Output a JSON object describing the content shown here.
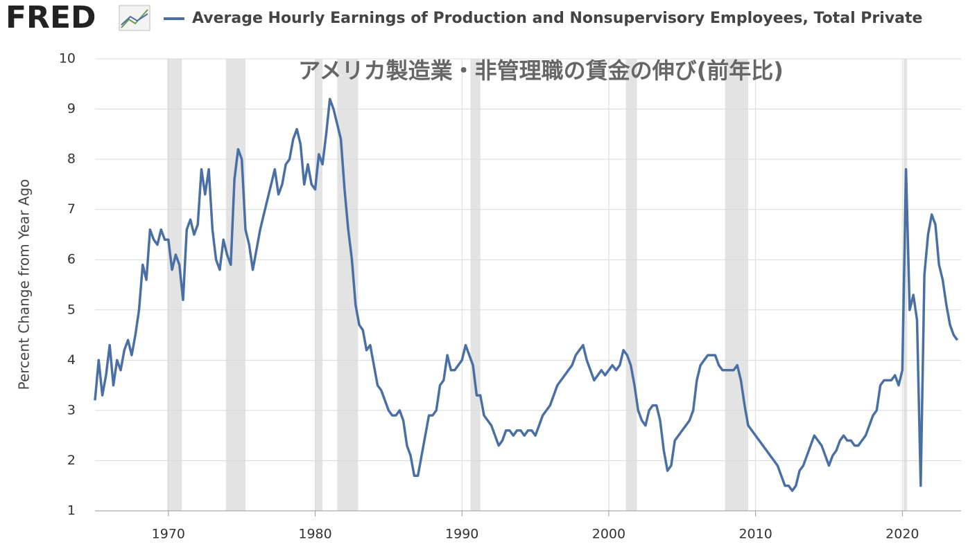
{
  "chart_data": {
    "type": "line",
    "logo": "FRED",
    "annotation": "アメリカ製造業・非管理職の賃金の伸び(前年比)",
    "ylabel": "Percent Change from Year Ago",
    "xlim": [
      1965,
      2024
    ],
    "ylim": [
      1,
      10
    ],
    "xticks": [
      1970,
      1980,
      1990,
      2000,
      2010,
      2020
    ],
    "yticks": [
      1,
      2,
      3,
      4,
      5,
      6,
      7,
      8,
      9,
      10
    ],
    "grid": true,
    "recessions": [
      [
        1969.92,
        1970.92
      ],
      [
        1973.92,
        1975.25
      ],
      [
        1980.0,
        1980.5
      ],
      [
        1981.5,
        1982.92
      ],
      [
        1990.58,
        1991.25
      ],
      [
        2001.17,
        2001.92
      ],
      [
        2007.92,
        2009.5
      ],
      [
        2020.08,
        2020.33
      ]
    ],
    "x": [
      1965,
      1965.25,
      1965.5,
      1965.75,
      1966,
      1966.25,
      1966.5,
      1966.75,
      1967,
      1967.25,
      1967.5,
      1967.75,
      1968,
      1968.25,
      1968.5,
      1968.75,
      1969,
      1969.25,
      1969.5,
      1969.75,
      1970,
      1970.25,
      1970.5,
      1970.75,
      1971,
      1971.25,
      1971.5,
      1971.75,
      1972,
      1972.25,
      1972.5,
      1972.75,
      1973,
      1973.25,
      1973.5,
      1973.75,
      1974,
      1974.25,
      1974.5,
      1974.75,
      1975,
      1975.25,
      1975.5,
      1975.75,
      1976,
      1976.25,
      1976.5,
      1976.75,
      1977,
      1977.25,
      1977.5,
      1977.75,
      1978,
      1978.25,
      1978.5,
      1978.75,
      1979,
      1979.25,
      1979.5,
      1979.75,
      1980,
      1980.25,
      1980.5,
      1980.75,
      1981,
      1981.25,
      1981.5,
      1981.75,
      1982,
      1982.25,
      1982.5,
      1982.75,
      1983,
      1983.25,
      1983.5,
      1983.75,
      1984,
      1984.25,
      1984.5,
      1984.75,
      1985,
      1985.25,
      1985.5,
      1985.75,
      1986,
      1986.25,
      1986.5,
      1986.75,
      1987,
      1987.25,
      1987.5,
      1987.75,
      1988,
      1988.25,
      1988.5,
      1988.75,
      1989,
      1989.25,
      1989.5,
      1989.75,
      1990,
      1990.25,
      1990.5,
      1990.75,
      1991,
      1991.25,
      1991.5,
      1991.75,
      1992,
      1992.25,
      1992.5,
      1992.75,
      1993,
      1993.25,
      1993.5,
      1993.75,
      1994,
      1994.25,
      1994.5,
      1994.75,
      1995,
      1995.25,
      1995.5,
      1995.75,
      1996,
      1996.25,
      1996.5,
      1996.75,
      1997,
      1997.25,
      1997.5,
      1997.75,
      1998,
      1998.25,
      1998.5,
      1998.75,
      1999,
      1999.25,
      1999.5,
      1999.75,
      2000,
      2000.25,
      2000.5,
      2000.75,
      2001,
      2001.25,
      2001.5,
      2001.75,
      2002,
      2002.25,
      2002.5,
      2002.75,
      2003,
      2003.25,
      2003.5,
      2003.75,
      2004,
      2004.25,
      2004.5,
      2004.75,
      2005,
      2005.25,
      2005.5,
      2005.75,
      2006,
      2006.25,
      2006.5,
      2006.75,
      2007,
      2007.25,
      2007.5,
      2007.75,
      2008,
      2008.25,
      2008.5,
      2008.75,
      2009,
      2009.25,
      2009.5,
      2009.75,
      2010,
      2010.25,
      2010.5,
      2010.75,
      2011,
      2011.25,
      2011.5,
      2011.75,
      2012,
      2012.25,
      2012.5,
      2012.75,
      2013,
      2013.25,
      2013.5,
      2013.75,
      2014,
      2014.25,
      2014.5,
      2014.75,
      2015,
      2015.25,
      2015.5,
      2015.75,
      2016,
      2016.25,
      2016.5,
      2016.75,
      2017,
      2017.25,
      2017.5,
      2017.75,
      2018,
      2018.25,
      2018.5,
      2018.75,
      2019,
      2019.25,
      2019.5,
      2019.75,
      2020,
      2020.25,
      2020.5,
      2020.75,
      2021,
      2021.25,
      2021.5,
      2021.75,
      2022,
      2022.25,
      2022.5,
      2022.75,
      2023,
      2023.25,
      2023.5,
      2023.75
    ],
    "series": [
      {
        "name": "Average Hourly Earnings of Production and Nonsupervisory Employees, Total Private",
        "color": "#4a6fa5",
        "values": [
          3.2,
          4.0,
          3.3,
          3.7,
          4.3,
          3.5,
          4.0,
          3.8,
          4.2,
          4.4,
          4.1,
          4.5,
          5.0,
          5.9,
          5.6,
          6.6,
          6.4,
          6.3,
          6.6,
          6.4,
          6.4,
          5.8,
          6.1,
          5.9,
          5.2,
          6.6,
          6.8,
          6.5,
          6.7,
          7.8,
          7.3,
          7.8,
          6.6,
          6.0,
          5.8,
          6.4,
          6.1,
          5.9,
          7.6,
          8.2,
          8.0,
          6.6,
          6.3,
          5.8,
          6.2,
          6.6,
          6.9,
          7.2,
          7.5,
          7.8,
          7.3,
          7.5,
          7.9,
          8.0,
          8.4,
          8.6,
          8.3,
          7.5,
          7.9,
          7.5,
          7.4,
          8.1,
          7.9,
          8.5,
          9.2,
          9.0,
          8.7,
          8.4,
          7.4,
          6.6,
          6.0,
          5.1,
          4.7,
          4.6,
          4.2,
          4.3,
          3.9,
          3.5,
          3.4,
          3.2,
          3.0,
          2.9,
          2.9,
          3.0,
          2.8,
          2.3,
          2.1,
          1.7,
          1.7,
          2.1,
          2.5,
          2.9,
          2.9,
          3.0,
          3.5,
          3.6,
          4.1,
          3.8,
          3.8,
          3.9,
          4.0,
          4.3,
          4.1,
          3.9,
          3.3,
          3.3,
          2.9,
          2.8,
          2.7,
          2.5,
          2.3,
          2.4,
          2.6,
          2.6,
          2.5,
          2.6,
          2.6,
          2.5,
          2.6,
          2.6,
          2.5,
          2.7,
          2.9,
          3.0,
          3.1,
          3.3,
          3.5,
          3.6,
          3.7,
          3.8,
          3.9,
          4.1,
          4.2,
          4.3,
          4.0,
          3.8,
          3.6,
          3.7,
          3.8,
          3.7,
          3.8,
          3.9,
          3.8,
          3.9,
          4.2,
          4.1,
          3.9,
          3.5,
          3.0,
          2.8,
          2.7,
          3.0,
          3.1,
          3.1,
          2.8,
          2.2,
          1.8,
          1.9,
          2.4,
          2.5,
          2.6,
          2.7,
          2.8,
          3.0,
          3.6,
          3.9,
          4.0,
          4.1,
          4.1,
          4.1,
          3.9,
          3.8,
          3.8,
          3.8,
          3.8,
          3.9,
          3.6,
          3.1,
          2.7,
          2.6,
          2.5,
          2.4,
          2.3,
          2.2,
          2.1,
          2.0,
          1.9,
          1.7,
          1.5,
          1.5,
          1.4,
          1.5,
          1.8,
          1.9,
          2.1,
          2.3,
          2.5,
          2.4,
          2.3,
          2.1,
          1.9,
          2.1,
          2.2,
          2.4,
          2.5,
          2.4,
          2.4,
          2.3,
          2.3,
          2.4,
          2.5,
          2.7,
          2.9,
          3.0,
          3.5,
          3.6,
          3.6,
          3.6,
          3.7,
          3.5,
          3.8,
          7.8,
          5.0,
          5.3,
          4.8,
          1.5,
          5.7,
          6.5,
          6.9,
          6.7,
          5.9,
          5.6,
          5.1,
          4.7,
          4.5,
          4.4
        ]
      }
    ]
  }
}
